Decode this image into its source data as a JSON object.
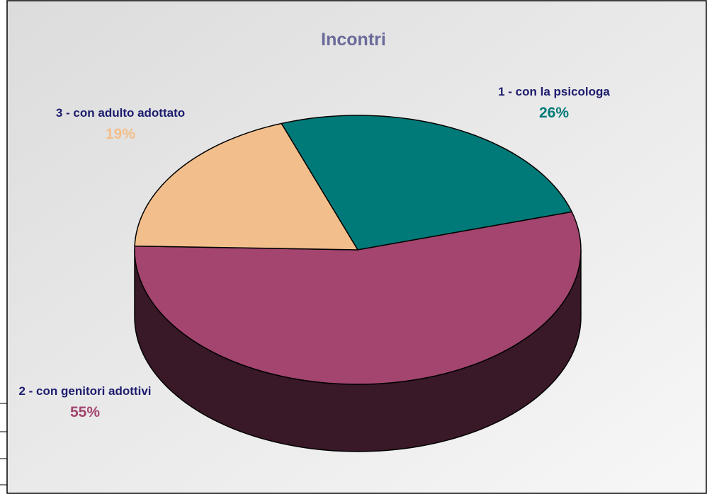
{
  "chart_data": {
    "type": "pie",
    "title": "Incontri",
    "categories": [
      "1 - con la psicologa",
      "2 - con genitori adottivi",
      "3 - con adulto adottato"
    ],
    "values": [
      26,
      55,
      19
    ],
    "value_labels": [
      "26%",
      "55%",
      "19%"
    ],
    "colors": [
      "#007a78",
      "#a3456f",
      "#f2bf8c"
    ],
    "label_color": "#1c1c6e",
    "title_color": "#6a6a9a"
  }
}
